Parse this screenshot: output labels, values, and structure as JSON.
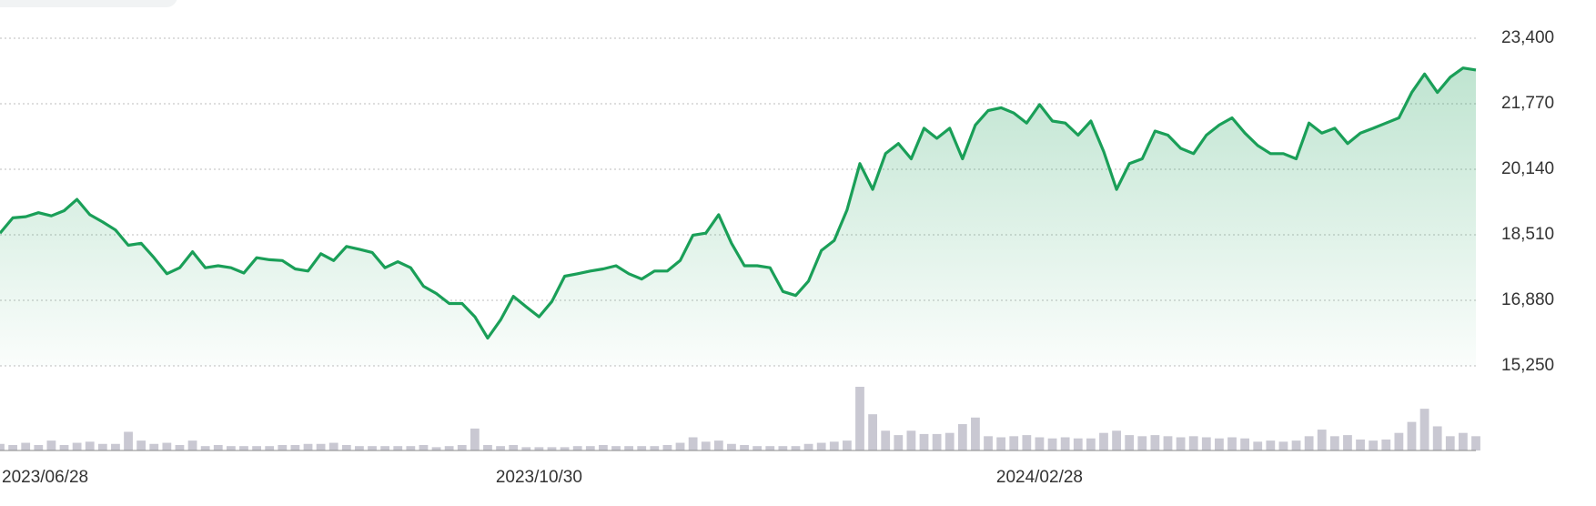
{
  "chart_data": {
    "type": "line",
    "categories": [
      "2023/06/28",
      null,
      null,
      null,
      null,
      null,
      null,
      null,
      null,
      null,
      null,
      null,
      null,
      null,
      null,
      null,
      null,
      null,
      null,
      null,
      null,
      null,
      null,
      null,
      null,
      null,
      null,
      null,
      null,
      null,
      null,
      null,
      null,
      null,
      null,
      null,
      null,
      null,
      null,
      null,
      null,
      null,
      "2023/10/30",
      null,
      null,
      null,
      null,
      null,
      null,
      null,
      null,
      null,
      null,
      null,
      null,
      null,
      null,
      null,
      null,
      null,
      null,
      null,
      null,
      null,
      null,
      null,
      null,
      null,
      null,
      null,
      null,
      null,
      null,
      null,
      null,
      null,
      null,
      null,
      null,
      null,
      null,
      "2024/02/28",
      null,
      null,
      null,
      null,
      null,
      null,
      null,
      null,
      null,
      null,
      null,
      null,
      null,
      null,
      null,
      null,
      null,
      null,
      null,
      null,
      null,
      null,
      null,
      null,
      null,
      null,
      null,
      null,
      null,
      null,
      null,
      null,
      null,
      null
    ],
    "series": [
      {
        "color": "#1a9f58",
        "values": [
          18550,
          18930,
          18960,
          19060,
          18980,
          19110,
          19390,
          19010,
          18830,
          18630,
          18250,
          18300,
          17940,
          17540,
          17690,
          18090,
          17690,
          17740,
          17690,
          17560,
          17940,
          17890,
          17870,
          17660,
          17610,
          18040,
          17870,
          18220,
          18150,
          18070,
          17690,
          17840,
          17690,
          17230,
          17050,
          16800,
          16800,
          16470,
          15940,
          16390,
          16980,
          16720,
          16470,
          16850,
          17480,
          17540,
          17610,
          17660,
          17740,
          17540,
          17410,
          17610,
          17610,
          17870,
          18500,
          18550,
          19010,
          18300,
          17740,
          17740,
          17690,
          17100,
          17000,
          17360,
          18120,
          18370,
          19130,
          20280,
          19640,
          20530,
          20780,
          20400,
          21160,
          20910,
          21160,
          20400,
          21240,
          21600,
          21670,
          21540,
          21290,
          21750,
          21340,
          21290,
          20990,
          21340,
          20580,
          19640,
          20280,
          20400,
          21090,
          20990,
          20660,
          20530,
          20990,
          21240,
          21420,
          21040,
          20730,
          20530,
          20530,
          20400,
          21290,
          21040,
          21160,
          20780,
          21040,
          21160,
          21290,
          21420,
          22050,
          22510,
          22050,
          22430,
          22660,
          22610
        ]
      }
    ],
    "volume": {
      "color": "#c9c8d2",
      "values": [
        6,
        5,
        7,
        5,
        9,
        5,
        7,
        8,
        6,
        6,
        17,
        9,
        6,
        7,
        5,
        9,
        4,
        5,
        4,
        4,
        4,
        4,
        5,
        5,
        6,
        6,
        7,
        5,
        4,
        4,
        4,
        4,
        4,
        5,
        3,
        4,
        5,
        20,
        5,
        4,
        5,
        3,
        3,
        3,
        3,
        4,
        4,
        5,
        4,
        4,
        4,
        4,
        5,
        7,
        12,
        8,
        9,
        6,
        5,
        4,
        4,
        4,
        4,
        6,
        7,
        8,
        9,
        58,
        33,
        18,
        14,
        18,
        15,
        15,
        16,
        24,
        30,
        13,
        12,
        13,
        14,
        12,
        11,
        12,
        11,
        11,
        16,
        18,
        14,
        13,
        14,
        13,
        12,
        13,
        12,
        11,
        12,
        11,
        8,
        9,
        8,
        9,
        13,
        19,
        13,
        14,
        10,
        9,
        10,
        16,
        26,
        38,
        22,
        13,
        16,
        13
      ]
    },
    "ylim": [
      15250,
      23400
    ],
    "yticks": [
      {
        "value": 15250,
        "label": "15,250"
      },
      {
        "value": 16880,
        "label": "16,880"
      },
      {
        "value": 18510,
        "label": "18,510"
      },
      {
        "value": 20140,
        "label": "20,140"
      },
      {
        "value": 21770,
        "label": "21,770"
      },
      {
        "value": 23400,
        "label": "23,400"
      }
    ],
    "grid": true
  }
}
